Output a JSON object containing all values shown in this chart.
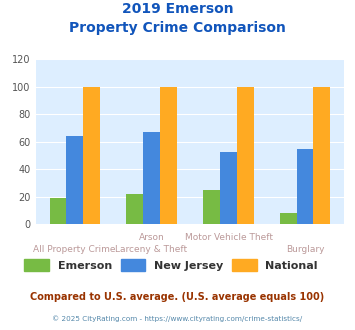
{
  "title_line1": "2019 Emerson",
  "title_line2": "Property Crime Comparison",
  "cat_labels_top": [
    "",
    "Arson",
    "Motor Vehicle Theft",
    ""
  ],
  "cat_labels_bot": [
    "All Property Crime",
    "Larceny & Theft",
    "",
    "Burglary"
  ],
  "emerson": [
    19,
    22,
    25,
    8
  ],
  "new_jersey": [
    64,
    67,
    53,
    55
  ],
  "national": [
    100,
    100,
    100,
    100
  ],
  "emerson_color": "#77bb44",
  "nj_color": "#4488dd",
  "national_color": "#ffaa22",
  "ylim": [
    0,
    120
  ],
  "yticks": [
    0,
    20,
    40,
    60,
    80,
    100,
    120
  ],
  "plot_bg": "#ddeeff",
  "title_color": "#1155bb",
  "xlabel_color": "#bb9999",
  "footer_text": "Compared to U.S. average. (U.S. average equals 100)",
  "footer_color": "#993300",
  "credit_text": "© 2025 CityRating.com - https://www.cityrating.com/crime-statistics/",
  "credit_color": "#5588aa",
  "legend_labels": [
    "Emerson",
    "New Jersey",
    "National"
  ],
  "legend_text_color": "#333333"
}
